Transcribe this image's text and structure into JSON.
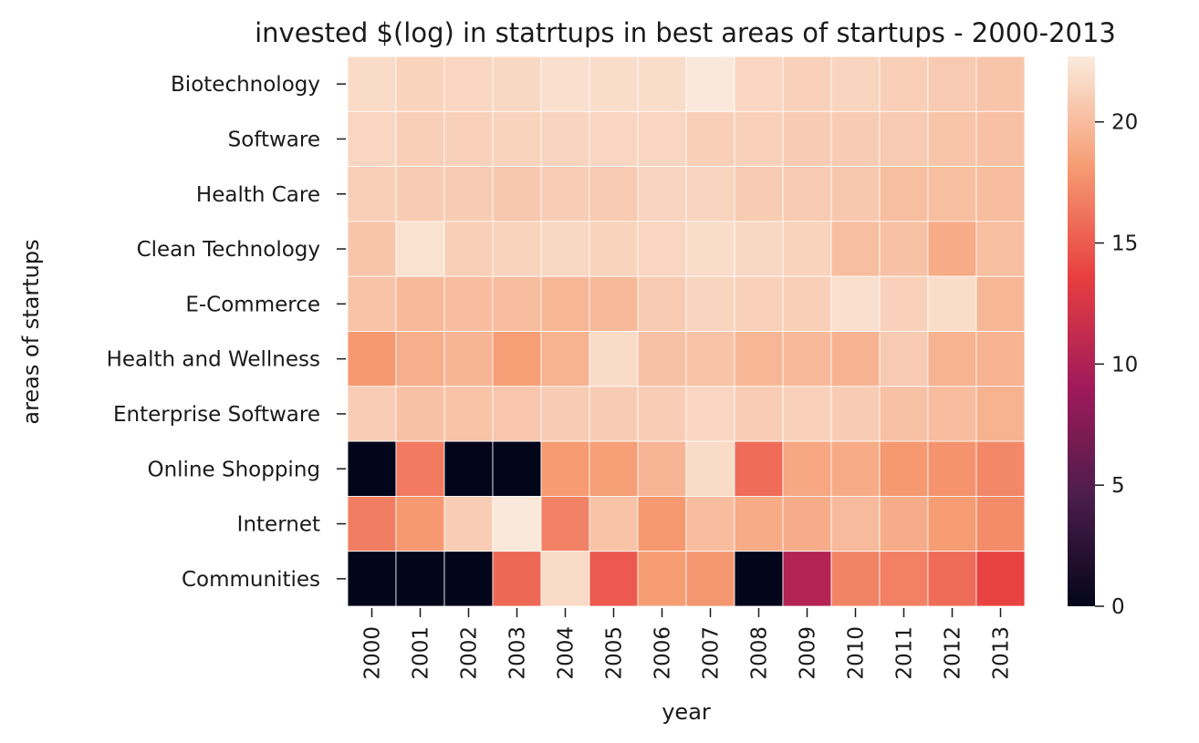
{
  "chart_data": {
    "type": "heatmap",
    "title": "invested $(log) in statrtups in best areas of startups - 2000-2013",
    "xlabel": "year",
    "ylabel": "areas of startups",
    "x": [
      "2000",
      "2001",
      "2002",
      "2003",
      "2004",
      "2005",
      "2006",
      "2007",
      "2008",
      "2009",
      "2010",
      "2011",
      "2012",
      "2013"
    ],
    "y": [
      "Biotechnology",
      "Software",
      "Health Care",
      "Clean Technology",
      "E-Commerce",
      "Health and Wellness",
      "Enterprise Software",
      "Online Shopping",
      "Internet",
      "Communities"
    ],
    "values": [
      [
        21.8,
        21.3,
        21.5,
        21.6,
        22.0,
        21.9,
        21.9,
        22.6,
        21.5,
        21.2,
        21.4,
        21.1,
        20.8,
        20.5
      ],
      [
        21.5,
        21.1,
        21.2,
        21.3,
        21.4,
        21.5,
        21.5,
        21.1,
        21.2,
        20.9,
        20.9,
        20.8,
        20.5,
        20.3
      ],
      [
        21.1,
        20.9,
        20.9,
        20.7,
        21.0,
        20.8,
        21.4,
        21.4,
        20.9,
        20.8,
        20.7,
        20.1,
        20.1,
        20.0
      ],
      [
        20.5,
        22.2,
        21.1,
        21.3,
        21.6,
        21.3,
        21.5,
        21.9,
        21.6,
        21.3,
        20.1,
        20.3,
        19.0,
        20.1
      ],
      [
        20.4,
        19.8,
        20.0,
        20.0,
        19.7,
        19.8,
        20.8,
        21.4,
        21.2,
        21.1,
        22.0,
        21.2,
        21.9,
        19.7
      ],
      [
        18.0,
        19.2,
        19.6,
        18.3,
        19.4,
        21.8,
        20.3,
        20.4,
        19.7,
        19.8,
        19.5,
        20.8,
        19.4,
        19.5
      ],
      [
        21.0,
        20.3,
        20.4,
        20.6,
        20.9,
        20.9,
        21.0,
        21.5,
        21.0,
        21.2,
        20.9,
        20.3,
        20.0,
        19.4
      ],
      [
        0,
        16.5,
        0,
        0,
        18.1,
        18.3,
        19.6,
        21.8,
        15.8,
        18.8,
        19.0,
        18.0,
        17.7,
        17.2
      ],
      [
        16.7,
        18.0,
        21.0,
        22.6,
        16.9,
        20.4,
        18.0,
        20.0,
        19.0,
        19.1,
        19.9,
        19.1,
        18.2,
        17.4
      ],
      [
        0,
        0,
        0,
        15.6,
        21.7,
        14.9,
        18.2,
        17.9,
        0,
        10.2,
        17.0,
        16.8,
        15.8,
        13.8
      ]
    ],
    "zlim": [
      0,
      22.7
    ],
    "colorbar_ticks": [
      0,
      5,
      10,
      15,
      20
    ],
    "colormap": [
      "#03051a",
      "#4c1d4b",
      "#a11a5b",
      "#e83f3f",
      "#f69c73",
      "#faebdd"
    ]
  }
}
